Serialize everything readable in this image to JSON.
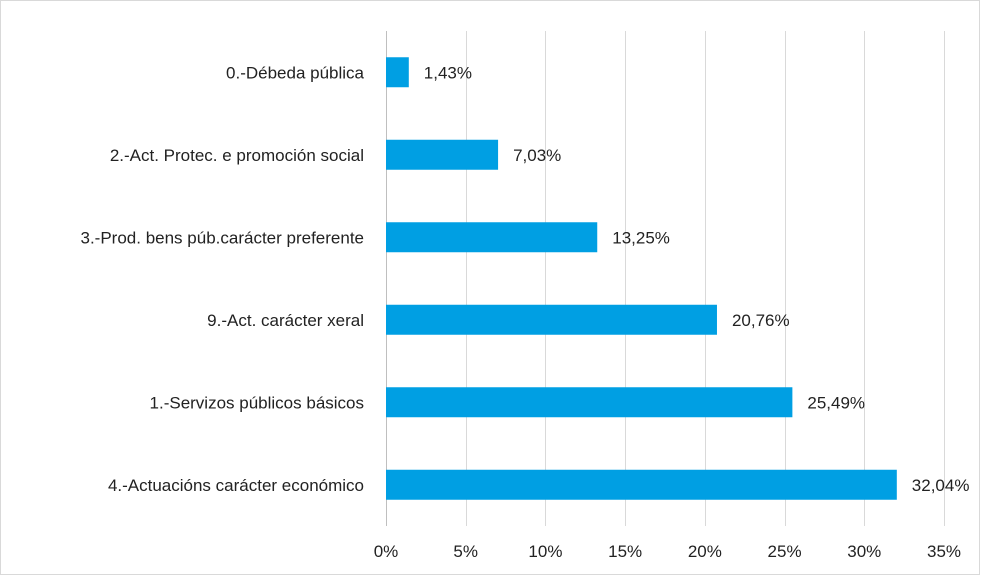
{
  "chart_data": {
    "type": "bar",
    "orientation": "horizontal",
    "categories": [
      "0.-Débeda pública",
      "2.-Act. Protec. e promoción social",
      "3.-Prod. bens púb.carácter preferente",
      "9.-Act. carácter xeral",
      "1.-Servizos públicos básicos",
      "4.-Actuacións carácter económico"
    ],
    "values": [
      1.43,
      7.03,
      13.25,
      20.76,
      25.49,
      32.04
    ],
    "data_labels": [
      "1,43%",
      "7,03%",
      "13,25%",
      "20,76%",
      "25,49%",
      "32,04%"
    ],
    "xlim": [
      0,
      35
    ],
    "x_ticks": [
      0,
      5,
      10,
      15,
      20,
      25,
      30,
      35
    ],
    "x_tick_labels": [
      "0%",
      "5%",
      "10%",
      "15%",
      "20%",
      "25%",
      "30%",
      "35%"
    ],
    "title": "",
    "xlabel": "",
    "ylabel": "",
    "grid": "vertical",
    "legend": "none",
    "bar_color": "#009fe3"
  }
}
